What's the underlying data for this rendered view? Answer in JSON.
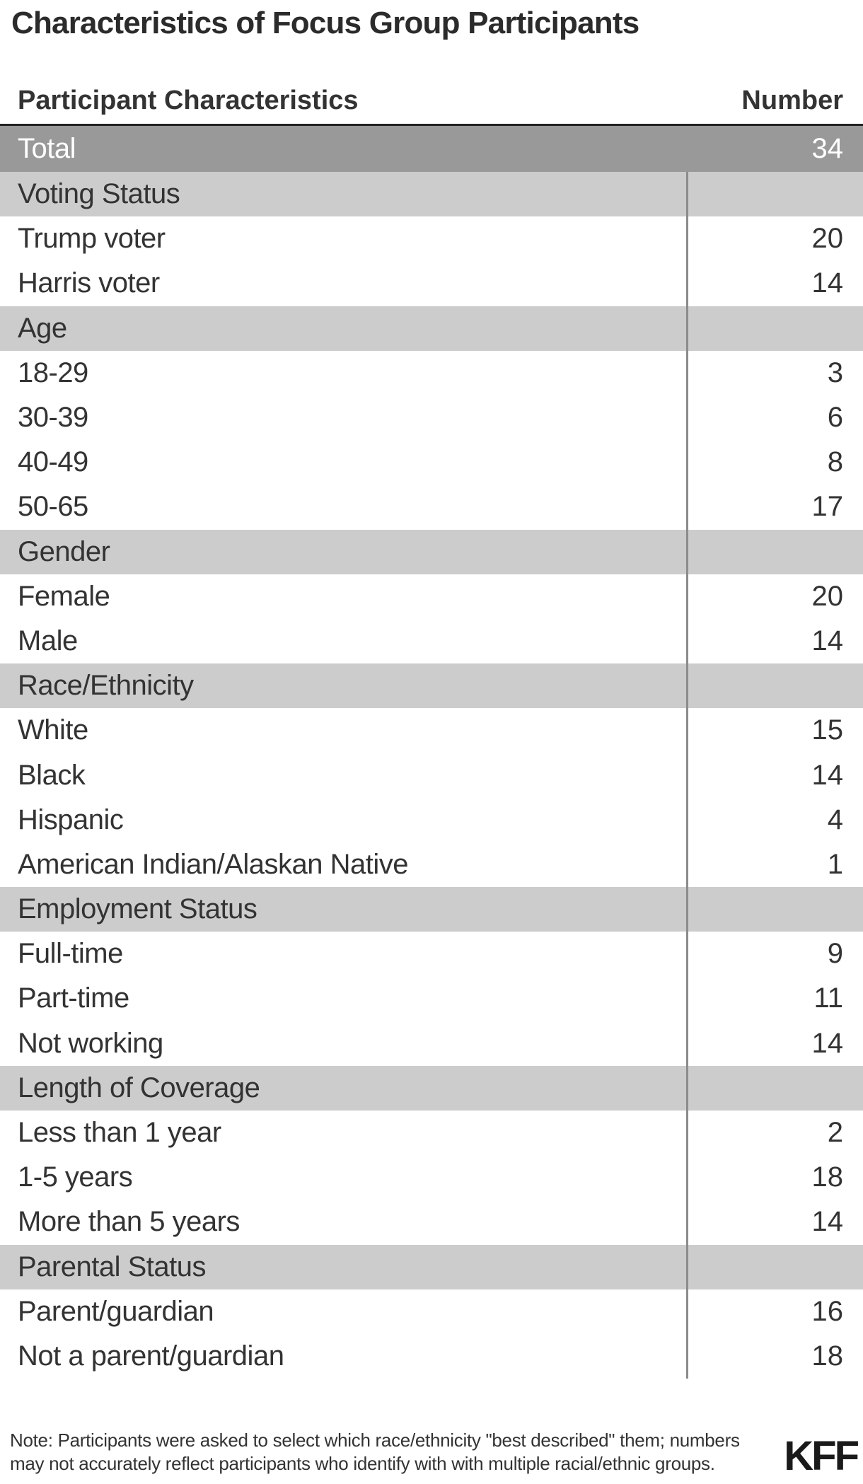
{
  "title": "Characteristics of Focus Group Participants",
  "table": {
    "col1_header": "Participant Characteristics",
    "col2_header": "Number",
    "total_row": {
      "label": "Total",
      "value": "34"
    },
    "rows": [
      {
        "type": "section",
        "label": "Voting Status",
        "value": ""
      },
      {
        "type": "data",
        "label": "Trump voter",
        "value": "20"
      },
      {
        "type": "data",
        "label": "Harris voter",
        "value": "14"
      },
      {
        "type": "section",
        "label": "Age",
        "value": ""
      },
      {
        "type": "data",
        "label": "18-29",
        "value": "3"
      },
      {
        "type": "data",
        "label": "30-39",
        "value": "6"
      },
      {
        "type": "data",
        "label": "40-49",
        "value": "8"
      },
      {
        "type": "data",
        "label": "50-65",
        "value": "17"
      },
      {
        "type": "section",
        "label": "Gender",
        "value": ""
      },
      {
        "type": "data",
        "label": "Female",
        "value": "20"
      },
      {
        "type": "data",
        "label": "Male",
        "value": "14"
      },
      {
        "type": "section",
        "label": "Race/Ethnicity",
        "value": ""
      },
      {
        "type": "data",
        "label": "White",
        "value": "15"
      },
      {
        "type": "data",
        "label": "Black",
        "value": "14"
      },
      {
        "type": "data",
        "label": "Hispanic",
        "value": "4"
      },
      {
        "type": "data",
        "label": "American Indian/Alaskan Native",
        "value": "1"
      },
      {
        "type": "section",
        "label": "Employment Status",
        "value": ""
      },
      {
        "type": "data",
        "label": "Full-time",
        "value": "9"
      },
      {
        "type": "data",
        "label": "Part-time",
        "value": "11"
      },
      {
        "type": "data",
        "label": "Not working",
        "value": "14"
      },
      {
        "type": "section",
        "label": "Length of Coverage",
        "value": ""
      },
      {
        "type": "data",
        "label": "Less than 1 year",
        "value": "2"
      },
      {
        "type": "data",
        "label": "1-5 years",
        "value": "18"
      },
      {
        "type": "data",
        "label": "More than 5 years",
        "value": "14"
      },
      {
        "type": "section",
        "label": "Parental Status",
        "value": ""
      },
      {
        "type": "data",
        "label": "Parent/guardian",
        "value": "16"
      },
      {
        "type": "data",
        "label": "Not a parent/guardian",
        "value": "18"
      }
    ]
  },
  "note": {
    "lines": [
      "Note: Participants were asked to select which race/ethnicity \"best described\" them; numbers",
      "may not accurately reflect participants who identify with with multiple racial/ethnic groups."
    ]
  },
  "logo": "KFF",
  "colors": {
    "total_row_bg": "#999999",
    "section_row_bg": "#cccccc",
    "divider": "#8c8c8c",
    "rule": "#222222"
  },
  "chart_data": {
    "type": "table",
    "title": "Characteristics of Focus Group Participants",
    "columns": [
      "Participant Characteristics",
      "Number"
    ],
    "total": {
      "label": "Total",
      "value": 34
    },
    "sections": [
      {
        "name": "Voting Status",
        "rows": [
          [
            "Trump voter",
            20
          ],
          [
            "Harris voter",
            14
          ]
        ]
      },
      {
        "name": "Age",
        "rows": [
          [
            "18-29",
            3
          ],
          [
            "30-39",
            6
          ],
          [
            "40-49",
            8
          ],
          [
            "50-65",
            17
          ]
        ]
      },
      {
        "name": "Gender",
        "rows": [
          [
            "Female",
            20
          ],
          [
            "Male",
            14
          ]
        ]
      },
      {
        "name": "Race/Ethnicity",
        "rows": [
          [
            "White",
            15
          ],
          [
            "Black",
            14
          ],
          [
            "Hispanic",
            4
          ],
          [
            "American Indian/Alaskan Native",
            1
          ]
        ]
      },
      {
        "name": "Employment Status",
        "rows": [
          [
            "Full-time",
            9
          ],
          [
            "Part-time",
            11
          ],
          [
            "Not working",
            14
          ]
        ]
      },
      {
        "name": "Length of Coverage",
        "rows": [
          [
            "Less than 1 year",
            2
          ],
          [
            "1-5 years",
            18
          ],
          [
            "More than 5 years",
            14
          ]
        ]
      },
      {
        "name": "Parental Status",
        "rows": [
          [
            "Parent/guardian",
            16
          ],
          [
            "Not a parent/guardian",
            18
          ]
        ]
      }
    ],
    "note": "Note: Participants were asked to select which race/ethnicity \"best described\" them; numbers may not accurately reflect participants who identify with with multiple racial/ethnic groups.",
    "branding": "KFF"
  }
}
